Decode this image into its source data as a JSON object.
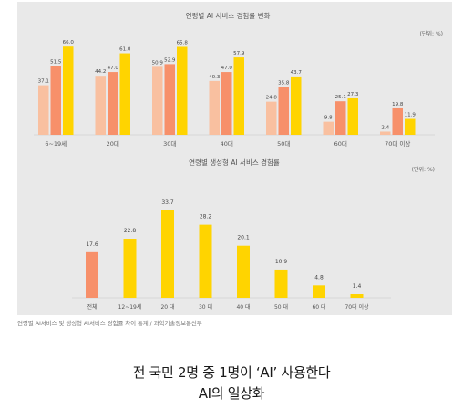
{
  "chart_data": [
    {
      "type": "bar",
      "title": "연령별 AI 서비스 경험률 변화",
      "unit_label": "(단위: %)",
      "categories": [
        "6~19세",
        "20대",
        "30대",
        "40대",
        "50대",
        "60대",
        "70대 이상"
      ],
      "series": [
        {
          "values": [
            37.1,
            44.2,
            50.9,
            40.3,
            24.8,
            9.8,
            2.4
          ]
        },
        {
          "values": [
            51.5,
            47.0,
            52.9,
            47.0,
            35.8,
            25.1,
            19.8
          ]
        },
        {
          "values": [
            66.0,
            61.0,
            65.8,
            57.9,
            43.7,
            27.3,
            11.9
          ]
        }
      ],
      "value_labels": [
        [
          "37.1",
          "44.2",
          "50.9",
          "40.3",
          "24.8",
          "9.8",
          "2.4"
        ],
        [
          "51.5",
          "47.0",
          "52.9",
          "47.0",
          "35.8",
          "25.1",
          "19.8"
        ],
        [
          "66.0",
          "61.0",
          "65.8",
          "57.9",
          "43.7",
          "27.3",
          "11.9"
        ]
      ],
      "colors": [
        "#f9c0a0",
        "#f7906a",
        "#ffd400"
      ],
      "ylim": [
        0,
        75
      ],
      "grid": false,
      "legend": "none"
    },
    {
      "type": "bar",
      "title": "연령별 생성형 AI 서비스 경험률",
      "unit_label": "(단위: %)",
      "categories": [
        "전체",
        "12~19세",
        "20 대",
        "30 대",
        "40 대",
        "50 대",
        "60 대",
        "70대 이상"
      ],
      "values": [
        17.6,
        22.8,
        33.7,
        28.2,
        20.1,
        10.9,
        4.8,
        1.4
      ],
      "value_labels": [
        "17.6",
        "22.8",
        "33.7",
        "28.2",
        "20.1",
        "10.9",
        "4.8",
        "1.4"
      ],
      "colors": [
        "#f7906a",
        "#ffd400"
      ],
      "ylim": [
        0,
        40
      ],
      "grid": false,
      "legend": "none"
    }
  ],
  "source": "연령별 AI서비스 및 생성형 AI서비스 경험률 차이 통계 / 과학기술정보통신부",
  "caption": {
    "line1": "전 국민 2명 중 1명이 ‘AI’ 사용한다",
    "line2": "AI의 일상화"
  }
}
